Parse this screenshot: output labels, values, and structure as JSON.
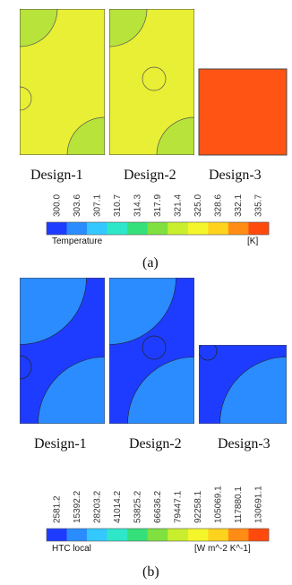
{
  "figure_a": {
    "designs": [
      "Design-1",
      "Design-2",
      "Design-3"
    ],
    "colorbar": {
      "ticks": [
        "300.0",
        "303.6",
        "307.1",
        "310.7",
        "314.3",
        "317.9",
        "321.4",
        "325.0",
        "328.6",
        "332.1",
        "335.7"
      ],
      "variable": "Temperature",
      "unit": "[K]",
      "colors": [
        "#1e3cff",
        "#2a8cff",
        "#33c8ff",
        "#2ee6c8",
        "#35e07a",
        "#7fe040",
        "#c8ee2e",
        "#f4f52a",
        "#ffd21e",
        "#ff8c14",
        "#ff4a0e"
      ]
    },
    "caption": "(a)",
    "fill_colors": {
      "design12_bg": "#e8ef34",
      "design12_corner": "#b7e33a",
      "design3": "#ff5414"
    }
  },
  "figure_b": {
    "designs": [
      "Design-1",
      "Design-2",
      "Design-3"
    ],
    "colorbar": {
      "ticks": [
        "2581.2",
        "15392.2",
        "28203.2",
        "41014.2",
        "53825.2",
        "66636.2",
        "79447.1",
        "92258.1",
        "105069.1",
        "117880.1",
        "130691.1"
      ],
      "variable": "HTC local",
      "unit": "[W m^-2 K^-1]",
      "colors": [
        "#1e3cff",
        "#2a8cff",
        "#33c8ff",
        "#2ee6c8",
        "#35e07a",
        "#7fe040",
        "#c8ee2e",
        "#f4f52a",
        "#ffd21e",
        "#ff8c14",
        "#ff4a0e"
      ]
    },
    "caption": "(b)"
  }
}
